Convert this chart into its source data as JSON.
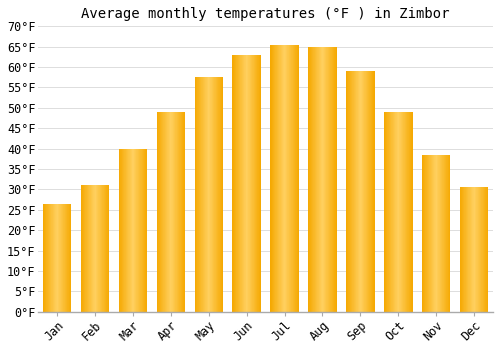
{
  "title": "Average monthly temperatures (°F ) in Zimbor",
  "months": [
    "Jan",
    "Feb",
    "Mar",
    "Apr",
    "May",
    "Jun",
    "Jul",
    "Aug",
    "Sep",
    "Oct",
    "Nov",
    "Dec"
  ],
  "values": [
    26.5,
    31,
    40,
    49,
    57.5,
    63,
    65.5,
    65,
    59,
    49,
    38.5,
    30.5
  ],
  "bar_color_center": "#FFD060",
  "bar_color_edge": "#F5A800",
  "ylim": [
    0,
    70
  ],
  "yticks": [
    0,
    5,
    10,
    15,
    20,
    25,
    30,
    35,
    40,
    45,
    50,
    55,
    60,
    65,
    70
  ],
  "background_color": "#ffffff",
  "grid_color": "#dddddd",
  "title_fontsize": 10,
  "tick_fontsize": 8.5,
  "font_family": "monospace"
}
